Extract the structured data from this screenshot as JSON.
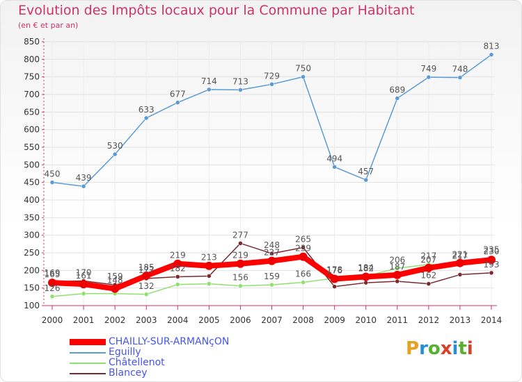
{
  "title": "Evolution des Impôts locaux pour la Commune par Habitant",
  "subtitle": "(en € et par an)",
  "logo": {
    "text": "Proxiti",
    "colors": [
      "#e8a020",
      "#2a8fd0",
      "#58b030",
      "#d8402a",
      "#2a8fd0",
      "#58b030",
      "#d8402a"
    ]
  },
  "chart_data": {
    "type": "line",
    "x": [
      "2000",
      "2001",
      "2002",
      "2003",
      "2004",
      "2005",
      "2006",
      "2007",
      "2008",
      "2009",
      "2010",
      "2011",
      "2012",
      "2013",
      "2014"
    ],
    "ylim": [
      100,
      850
    ],
    "yticks": [
      "100",
      "150",
      "200",
      "250",
      "300",
      "350",
      "400",
      "450",
      "500",
      "550",
      "600",
      "650",
      "700",
      "750",
      "800",
      "850"
    ],
    "grid": true,
    "legend_position": "bottom-left",
    "series": [
      {
        "name": "Eguilly",
        "color": "#5b9bd5",
        "width": 1.5,
        "marker": 3,
        "values": [
          450,
          439,
          530,
          633,
          677,
          714,
          713,
          729,
          750,
          494,
          457,
          689,
          749,
          748,
          813
        ],
        "labels": [
          "450",
          "439",
          "530",
          "633",
          "677",
          "714",
          "713",
          "729",
          "750",
          "494",
          "457",
          "689",
          "749",
          "748",
          "813"
        ]
      },
      {
        "name": "Châtellenot",
        "color": "#90e070",
        "width": 1.5,
        "marker": 3,
        "values": [
          126,
          134,
          134,
          132,
          160,
          162,
          156,
          159,
          166,
          178,
          184,
          206,
          217,
          217,
          235
        ],
        "labels": [
          "126",
          "",
          "",
          "132",
          "",
          "",
          "156",
          "159",
          "166",
          "178",
          "184",
          "206",
          "217",
          "217",
          "235"
        ]
      },
      {
        "name": "Blancey",
        "color": "#7a2a30",
        "width": 1.5,
        "marker": 3,
        "values": [
          169,
          170,
          159,
          177,
          182,
          184,
          277,
          248,
          265,
          154,
          165,
          169,
          162,
          188,
          193
        ],
        "labels": [
          "169",
          "170",
          "159",
          "177",
          "182",
          "",
          "277",
          "248",
          "265",
          "",
          "",
          "",
          "162",
          "",
          "193"
        ]
      },
      {
        "name": "CHAILLY-SUR-ARMANçON",
        "color": "#ff0000",
        "width": 8,
        "marker": 6,
        "values": [
          165,
          161,
          148,
          185,
          219,
          213,
          219,
          227,
          239,
          176,
          182,
          187,
          207,
          221,
          230
        ],
        "labels": [
          "165",
          "161",
          "148",
          "185",
          "219",
          "213",
          "219",
          "227",
          "239",
          "176",
          "182",
          "187",
          "207",
          "221",
          "230"
        ]
      }
    ]
  },
  "legend": [
    {
      "label": "CHAILLY-SUR-ARMANçON",
      "color": "#ff0000",
      "thickness": 9,
      "text_color": "#4455ee"
    },
    {
      "label": "Eguilly",
      "color": "#5b9bd5",
      "thickness": 2,
      "text_color": "#4455ee"
    },
    {
      "label": "Châtellenot",
      "color": "#90e070",
      "thickness": 2,
      "text_color": "#4455ee"
    },
    {
      "label": "Blancey",
      "color": "#7a2a30",
      "thickness": 2,
      "text_color": "#4455ee"
    }
  ]
}
